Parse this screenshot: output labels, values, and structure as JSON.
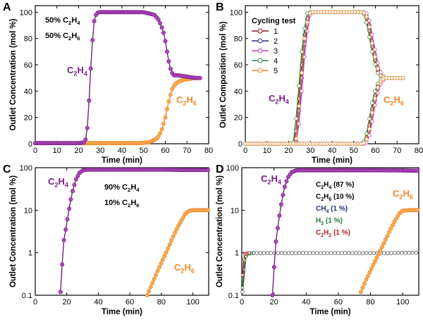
{
  "colors": {
    "purple": "#7a1f86",
    "purple_fill": "#b04ac0",
    "orange": "#f0892a",
    "orange_fill": "#f6ad55",
    "navy": "#1f2f6e",
    "green": "#1e7d3a",
    "red": "#b22222",
    "grey": "#9a9a9a",
    "axis": "#000000"
  },
  "chart_data": [
    {
      "panel": "A",
      "type": "line",
      "xlabel": "Time (min)",
      "ylabel": "Outlet Concentration (mol %)",
      "xlim": [
        0,
        80
      ],
      "ylim": [
        0,
        105
      ],
      "xticks": [
        "0",
        "10",
        "20",
        "30",
        "40",
        "50",
        "60",
        "70",
        "80"
      ],
      "yticks": [
        "0",
        "20",
        "40",
        "60",
        "80",
        "100"
      ],
      "feed_labels": [
        {
          "text": "50% C",
          "sub": "2",
          "tail": "H",
          "sub2": "4"
        },
        {
          "text": "50% C",
          "sub": "2",
          "tail": "H",
          "sub2": "6"
        }
      ],
      "series": [
        {
          "name": "C2H4",
          "color": "purple",
          "x": [
            0,
            20,
            23,
            24,
            25,
            26,
            27,
            28,
            29,
            30,
            35,
            40,
            45,
            50,
            55,
            57,
            59,
            60,
            61,
            62,
            63,
            64,
            66,
            68,
            70,
            72,
            74,
            76
          ],
          "y": [
            0.5,
            0.5,
            1,
            12,
            38,
            70,
            92,
            98,
            100,
            100,
            100,
            100,
            100,
            100,
            98,
            94,
            86,
            78,
            68,
            59,
            54,
            52,
            52,
            51.5,
            51,
            50.5,
            50,
            50
          ]
        },
        {
          "name": "C2H6",
          "color": "orange",
          "x": [
            0,
            10,
            20,
            30,
            40,
            48,
            52,
            54,
            56,
            57,
            58,
            59,
            60,
            61,
            62,
            63,
            64,
            65,
            66,
            68,
            70,
            72,
            74,
            76
          ],
          "y": [
            0.5,
            0.5,
            0.5,
            0.5,
            0.5,
            0.5,
            1,
            2,
            4,
            6,
            9,
            14,
            20,
            28,
            35,
            41,
            44,
            46,
            47,
            48.5,
            49,
            49.5,
            50,
            50
          ]
        }
      ]
    },
    {
      "panel": "B",
      "type": "line",
      "xlabel": "Time (min)",
      "ylabel": "Outlet Composition (mol %)",
      "xlim": [
        0,
        80
      ],
      "ylim": [
        0,
        105
      ],
      "xticks": [
        "0",
        "10",
        "20",
        "30",
        "40",
        "50",
        "60",
        "70",
        "80"
      ],
      "yticks": [
        "0",
        "20",
        "40",
        "60",
        "80",
        "100"
      ],
      "legend_title": "Cycling test",
      "legend_placement": "top-left",
      "series": [
        {
          "name": "1",
          "color": "#8b1a1a"
        },
        {
          "name": "2",
          "color": "#2a2a8a"
        },
        {
          "name": "3",
          "color": "#c040c0"
        },
        {
          "name": "4",
          "color": "#2e8b57"
        },
        {
          "name": "5",
          "color": "#f0892a"
        }
      ],
      "c2h4": {
        "x": [
          0,
          22,
          23,
          25,
          27,
          29,
          30,
          35,
          40,
          45,
          50,
          54,
          55,
          56,
          57,
          58,
          59,
          60,
          61,
          62,
          63,
          64,
          65,
          70,
          73
        ],
        "y": [
          0,
          0,
          2,
          40,
          80,
          99,
          100,
          100,
          100,
          100,
          100,
          100,
          99,
          95,
          88,
          78,
          70,
          62,
          56,
          52,
          51,
          50,
          50,
          50,
          50
        ]
      },
      "c2h6": {
        "x": [
          0,
          10,
          20,
          30,
          40,
          50,
          54,
          55,
          56,
          57,
          58,
          59,
          60,
          61,
          62,
          63,
          64,
          65,
          70,
          73
        ],
        "y": [
          0,
          0,
          0,
          0,
          0,
          0,
          0,
          1,
          5,
          12,
          22,
          31,
          38,
          44,
          47,
          49,
          50,
          50,
          50,
          50
        ]
      },
      "cycle_offsets": [
        0,
        0.5,
        1.0,
        -0.5,
        0.3
      ]
    },
    {
      "panel": "C",
      "type": "line",
      "scale": "log",
      "xlabel": "Time (min)",
      "ylabel": "Outlet Concentration (mol %)",
      "xlim": [
        0,
        110
      ],
      "ylim": [
        0.1,
        100
      ],
      "xticks": [
        "0",
        "20",
        "40",
        "60",
        "80",
        "100"
      ],
      "yticks": [
        "0.1",
        "1",
        "10",
        "100"
      ],
      "feed_labels": [
        {
          "text": "90% C",
          "sub": "2",
          "tail": "H",
          "sub2": "4"
        },
        {
          "text": "10% C",
          "sub": "2",
          "tail": "H",
          "sub2": "6"
        }
      ],
      "series": [
        {
          "name": "C2H4",
          "color": "purple",
          "x": [
            16,
            18,
            20,
            22,
            24,
            26,
            28,
            30,
            32,
            34,
            40,
            50,
            60,
            70,
            80,
            90,
            100,
            110
          ],
          "y": [
            0.12,
            1.8,
            5,
            14,
            32,
            55,
            75,
            86,
            89,
            90,
            90,
            90,
            90,
            90,
            90,
            89,
            88,
            88
          ]
        },
        {
          "name": "C2H6",
          "color": "orange",
          "x": [
            71,
            73,
            75,
            78,
            81,
            84,
            87,
            90,
            93,
            95,
            97,
            100,
            104,
            108,
            110
          ],
          "y": [
            0.1,
            0.15,
            0.22,
            0.4,
            0.7,
            1.2,
            2.2,
            3.8,
            6,
            8,
            9.5,
            10,
            10,
            10,
            10
          ]
        }
      ]
    },
    {
      "panel": "D",
      "type": "line",
      "scale": "log",
      "xlabel": "Time (min)",
      "ylabel": "Outlet Concentration (mol %)",
      "xlim": [
        0,
        110
      ],
      "ylim": [
        0.1,
        100
      ],
      "xticks": [
        "0",
        "20",
        "40",
        "60",
        "80",
        "100"
      ],
      "yticks": [
        "0.1",
        "1",
        "10",
        "100"
      ],
      "legend": [
        {
          "text": "C2H4 (87 %)",
          "color": "#000000"
        },
        {
          "text": "C2H6 (10 %)",
          "color": "#000000"
        },
        {
          "text": "CH4 (1 %)",
          "color": "navy"
        },
        {
          "text": "H2 (1 %)",
          "color": "green"
        },
        {
          "text": "C2H2 (1 %)",
          "color": "red"
        }
      ],
      "series": [
        {
          "name": "C2H4",
          "color": "purple",
          "x": [
            19,
            21,
            23,
            25,
            27,
            29,
            31,
            33,
            35,
            40,
            50,
            60,
            70,
            80,
            90,
            100,
            110
          ],
          "y": [
            0.1,
            1.6,
            6,
            18,
            40,
            62,
            78,
            85,
            87,
            87,
            87,
            87,
            87,
            87,
            87,
            86,
            85
          ]
        },
        {
          "name": "C2H6",
          "color": "orange",
          "x": [
            74,
            77,
            80,
            83,
            86,
            89,
            92,
            95,
            98,
            100,
            104,
            108,
            110
          ],
          "y": [
            0.12,
            0.22,
            0.38,
            0.65,
            1.1,
            1.9,
            3.3,
            5.5,
            8.5,
            9.8,
            10,
            10,
            10
          ]
        },
        {
          "name": "CH4",
          "color": "grey",
          "x": [
            0.5,
            1,
            1.5,
            2,
            3,
            4,
            5,
            7,
            10,
            15,
            20,
            30,
            40,
            50,
            60,
            70,
            80,
            90,
            100,
            110
          ],
          "y": [
            0.12,
            0.25,
            0.5,
            0.75,
            0.9,
            0.95,
            0.97,
            0.98,
            0.98,
            0.98,
            0.98,
            0.98,
            0.98,
            0.98,
            0.98,
            0.98,
            0.98,
            0.98,
            1.0,
            1.0
          ]
        },
        {
          "name": "H2",
          "color": "green",
          "x": [
            0.5,
            1,
            2,
            3,
            5,
            8
          ],
          "y": [
            0.15,
            0.35,
            0.7,
            0.9,
            0.97,
            0.98
          ]
        },
        {
          "name": "C2H2",
          "color": "red",
          "x": [
            0.5,
            1,
            1.5,
            2,
            3,
            5
          ],
          "y": [
            0.3,
            0.6,
            0.85,
            0.95,
            0.98,
            0.99
          ]
        }
      ]
    }
  ]
}
